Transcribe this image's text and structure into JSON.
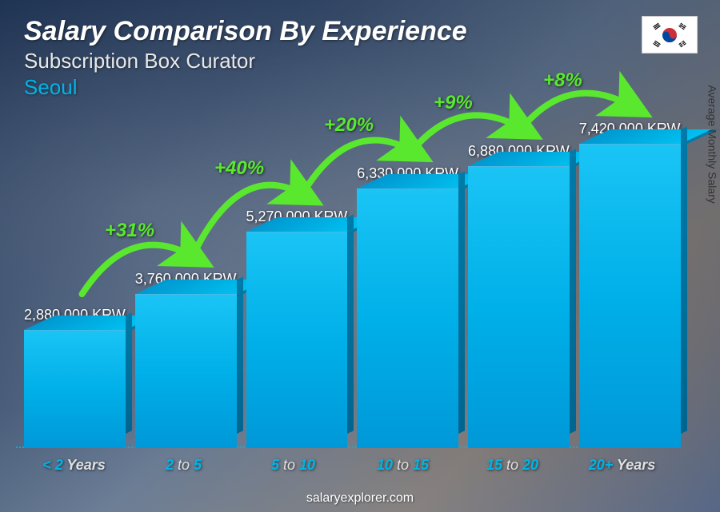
{
  "header": {
    "title": "Salary Comparison By Experience",
    "subtitle": "Subscription Box Curator",
    "location": "Seoul"
  },
  "flag": {
    "country": "South Korea"
  },
  "axis": {
    "ylabel": "Average Monthly Salary"
  },
  "footer": {
    "text": "salaryexplorer.com"
  },
  "chart": {
    "type": "bar",
    "currency": "KRW",
    "max_value": 7420000,
    "bar_color_top": "#1ac4f5",
    "bar_color_bottom": "#0098d8",
    "bar_color_side": "#006590",
    "arrow_color": "#5ae82f",
    "pct_fontsize": 24,
    "value_fontsize": 18,
    "xlabel_fontsize": 18,
    "xlabel_color": "#00b4e6",
    "background_gradient": [
      "#2a3f5f",
      "#4a5f7f",
      "#8a9bb0",
      "#b0a090",
      "#6a7a9a"
    ],
    "bars": [
      {
        "label_pre": "< 2",
        "label_post": "Years",
        "value": 2880000,
        "value_label": "2,880,000 KRW",
        "pct": null
      },
      {
        "label_pre": "2",
        "label_mid": " to ",
        "label_post2": "5",
        "value": 3760000,
        "value_label": "3,760,000 KRW",
        "pct": "+31%"
      },
      {
        "label_pre": "5",
        "label_mid": " to ",
        "label_post2": "10",
        "value": 5270000,
        "value_label": "5,270,000 KRW",
        "pct": "+40%"
      },
      {
        "label_pre": "10",
        "label_mid": " to ",
        "label_post2": "15",
        "value": 6330000,
        "value_label": "6,330,000 KRW",
        "pct": "+20%"
      },
      {
        "label_pre": "15",
        "label_mid": " to ",
        "label_post2": "20",
        "value": 6880000,
        "value_label": "6,880,000 KRW",
        "pct": "+9%"
      },
      {
        "label_pre": "20+",
        "label_post": "Years",
        "value": 7420000,
        "value_label": "7,420,000 KRW",
        "pct": "+8%"
      }
    ]
  }
}
